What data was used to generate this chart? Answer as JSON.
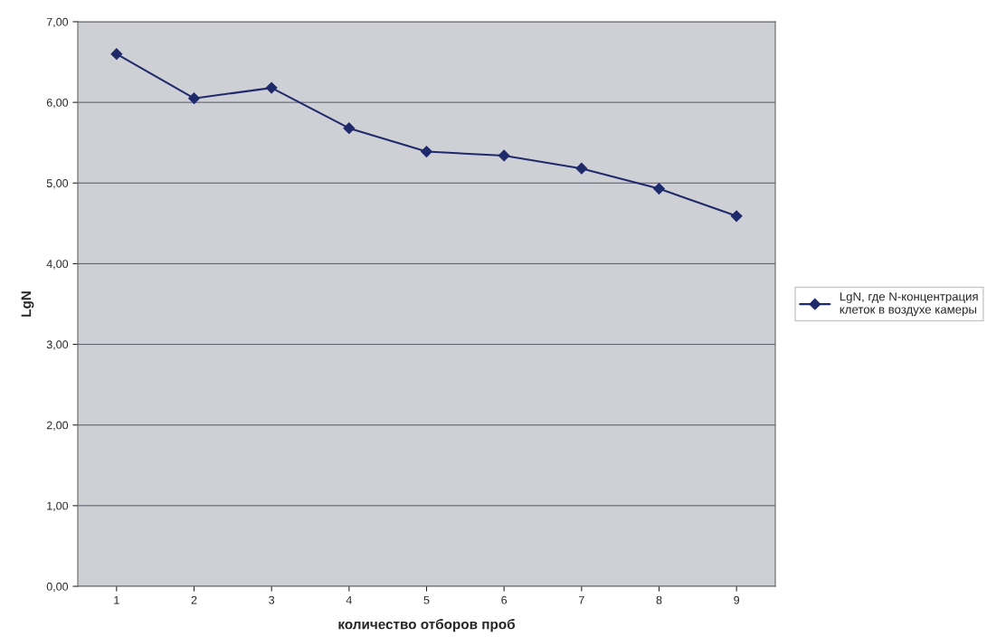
{
  "chart_data": {
    "type": "line",
    "xlabel": "количество отборов проб",
    "ylabel": "LgN",
    "categories": [
      "1",
      "2",
      "3",
      "4",
      "5",
      "6",
      "7",
      "8",
      "9"
    ],
    "series": [
      {
        "name": "LgN, где N-концентрация клеток в воздухе камеры",
        "color": "#1f2a6b",
        "values": [
          6.6,
          6.05,
          6.18,
          5.68,
          5.39,
          5.34,
          5.18,
          4.93,
          4.59
        ]
      }
    ],
    "ylim": [
      0,
      7
    ],
    "yticks": [
      {
        "value": 0,
        "label": "0,00"
      },
      {
        "value": 1,
        "label": "1,00"
      },
      {
        "value": 2,
        "label": "2,00"
      },
      {
        "value": 3,
        "label": "3,00"
      },
      {
        "value": 4,
        "label": "4,00"
      },
      {
        "value": 5,
        "label": "5,00"
      },
      {
        "value": 6,
        "label": "6,00"
      },
      {
        "value": 7,
        "label": "7,00"
      }
    ],
    "grid": "y",
    "legend": "right",
    "marker": "diamond",
    "line_style": "solid"
  }
}
